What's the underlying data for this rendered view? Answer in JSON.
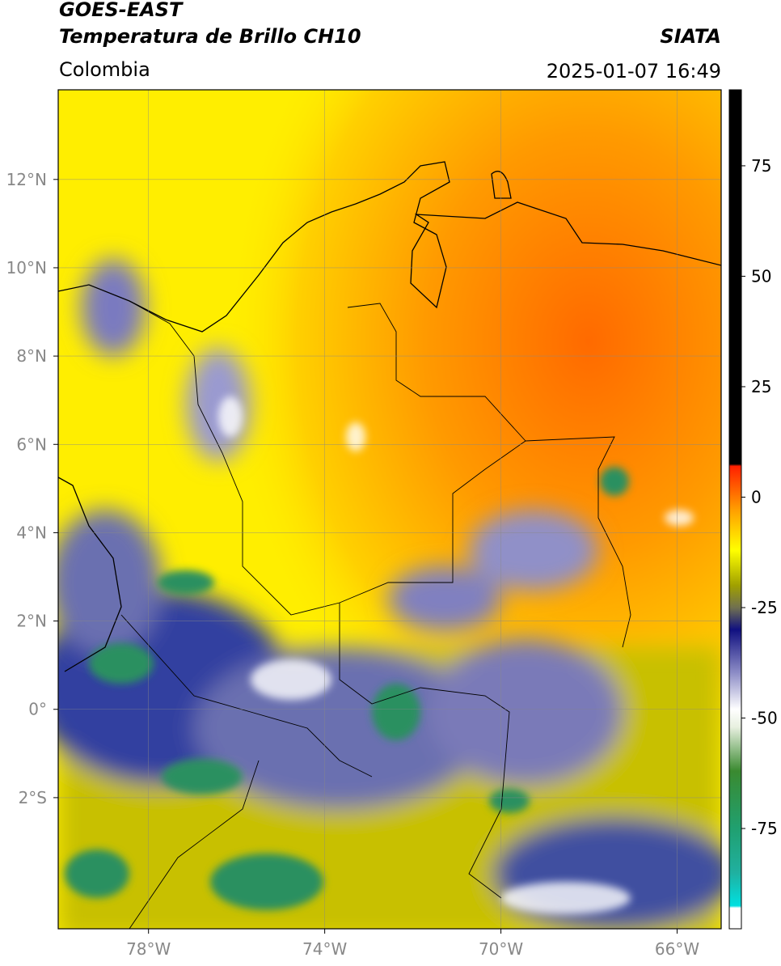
{
  "header": {
    "title": "GOES-EAST",
    "subtitle": "Temperatura de Brillo CH10",
    "source": "SIATA",
    "region": "Colombia",
    "datetime": "2025-01-07 16:49"
  },
  "chart_data": {
    "type": "map",
    "xlim": [
      -80.05,
      -65
    ],
    "ylim": [
      -4.97,
      14.03
    ],
    "xticks": [
      {
        "value": -78,
        "label": "78°W"
      },
      {
        "value": -74,
        "label": "74°W"
      },
      {
        "value": -70,
        "label": "70°W"
      },
      {
        "value": -66,
        "label": "66°W"
      }
    ],
    "yticks": [
      {
        "value": -2,
        "label": "2°S"
      },
      {
        "value": 0,
        "label": "0°"
      },
      {
        "value": 2,
        "label": "2°N"
      },
      {
        "value": 4,
        "label": "4°N"
      },
      {
        "value": 6,
        "label": "6°N"
      },
      {
        "value": 8,
        "label": "8°N"
      },
      {
        "value": 10,
        "label": "10°N"
      },
      {
        "value": 12,
        "label": "12°N"
      }
    ],
    "grid": true,
    "colorbar": {
      "lim": [
        -97.7,
        92.2
      ],
      "ticks": [
        75,
        50,
        25,
        0,
        -25,
        -50,
        -75
      ],
      "colormap": [
        {
          "value": -97.7,
          "color": "#ffffff"
        },
        {
          "value": -93,
          "color": "#ffffff"
        },
        {
          "value": -92.5,
          "color": "#00e0e0"
        },
        {
          "value": -85,
          "color": "#20b0a0"
        },
        {
          "value": -75,
          "color": "#20a070"
        },
        {
          "value": -62,
          "color": "#3a8a30"
        },
        {
          "value": -52,
          "color": "#e8f0e0"
        },
        {
          "value": -48,
          "color": "#ffffff"
        },
        {
          "value": -40,
          "color": "#9090c8"
        },
        {
          "value": -30,
          "color": "#101080"
        },
        {
          "value": -25,
          "color": "#707050"
        },
        {
          "value": -20,
          "color": "#a0a000"
        },
        {
          "value": -12,
          "color": "#ffff00"
        },
        {
          "value": -3,
          "color": "#ffa000"
        },
        {
          "value": 7,
          "color": "#ff2000"
        },
        {
          "value": 7.5,
          "color": "#000000"
        },
        {
          "value": 92.2,
          "color": "#000000"
        }
      ]
    }
  }
}
